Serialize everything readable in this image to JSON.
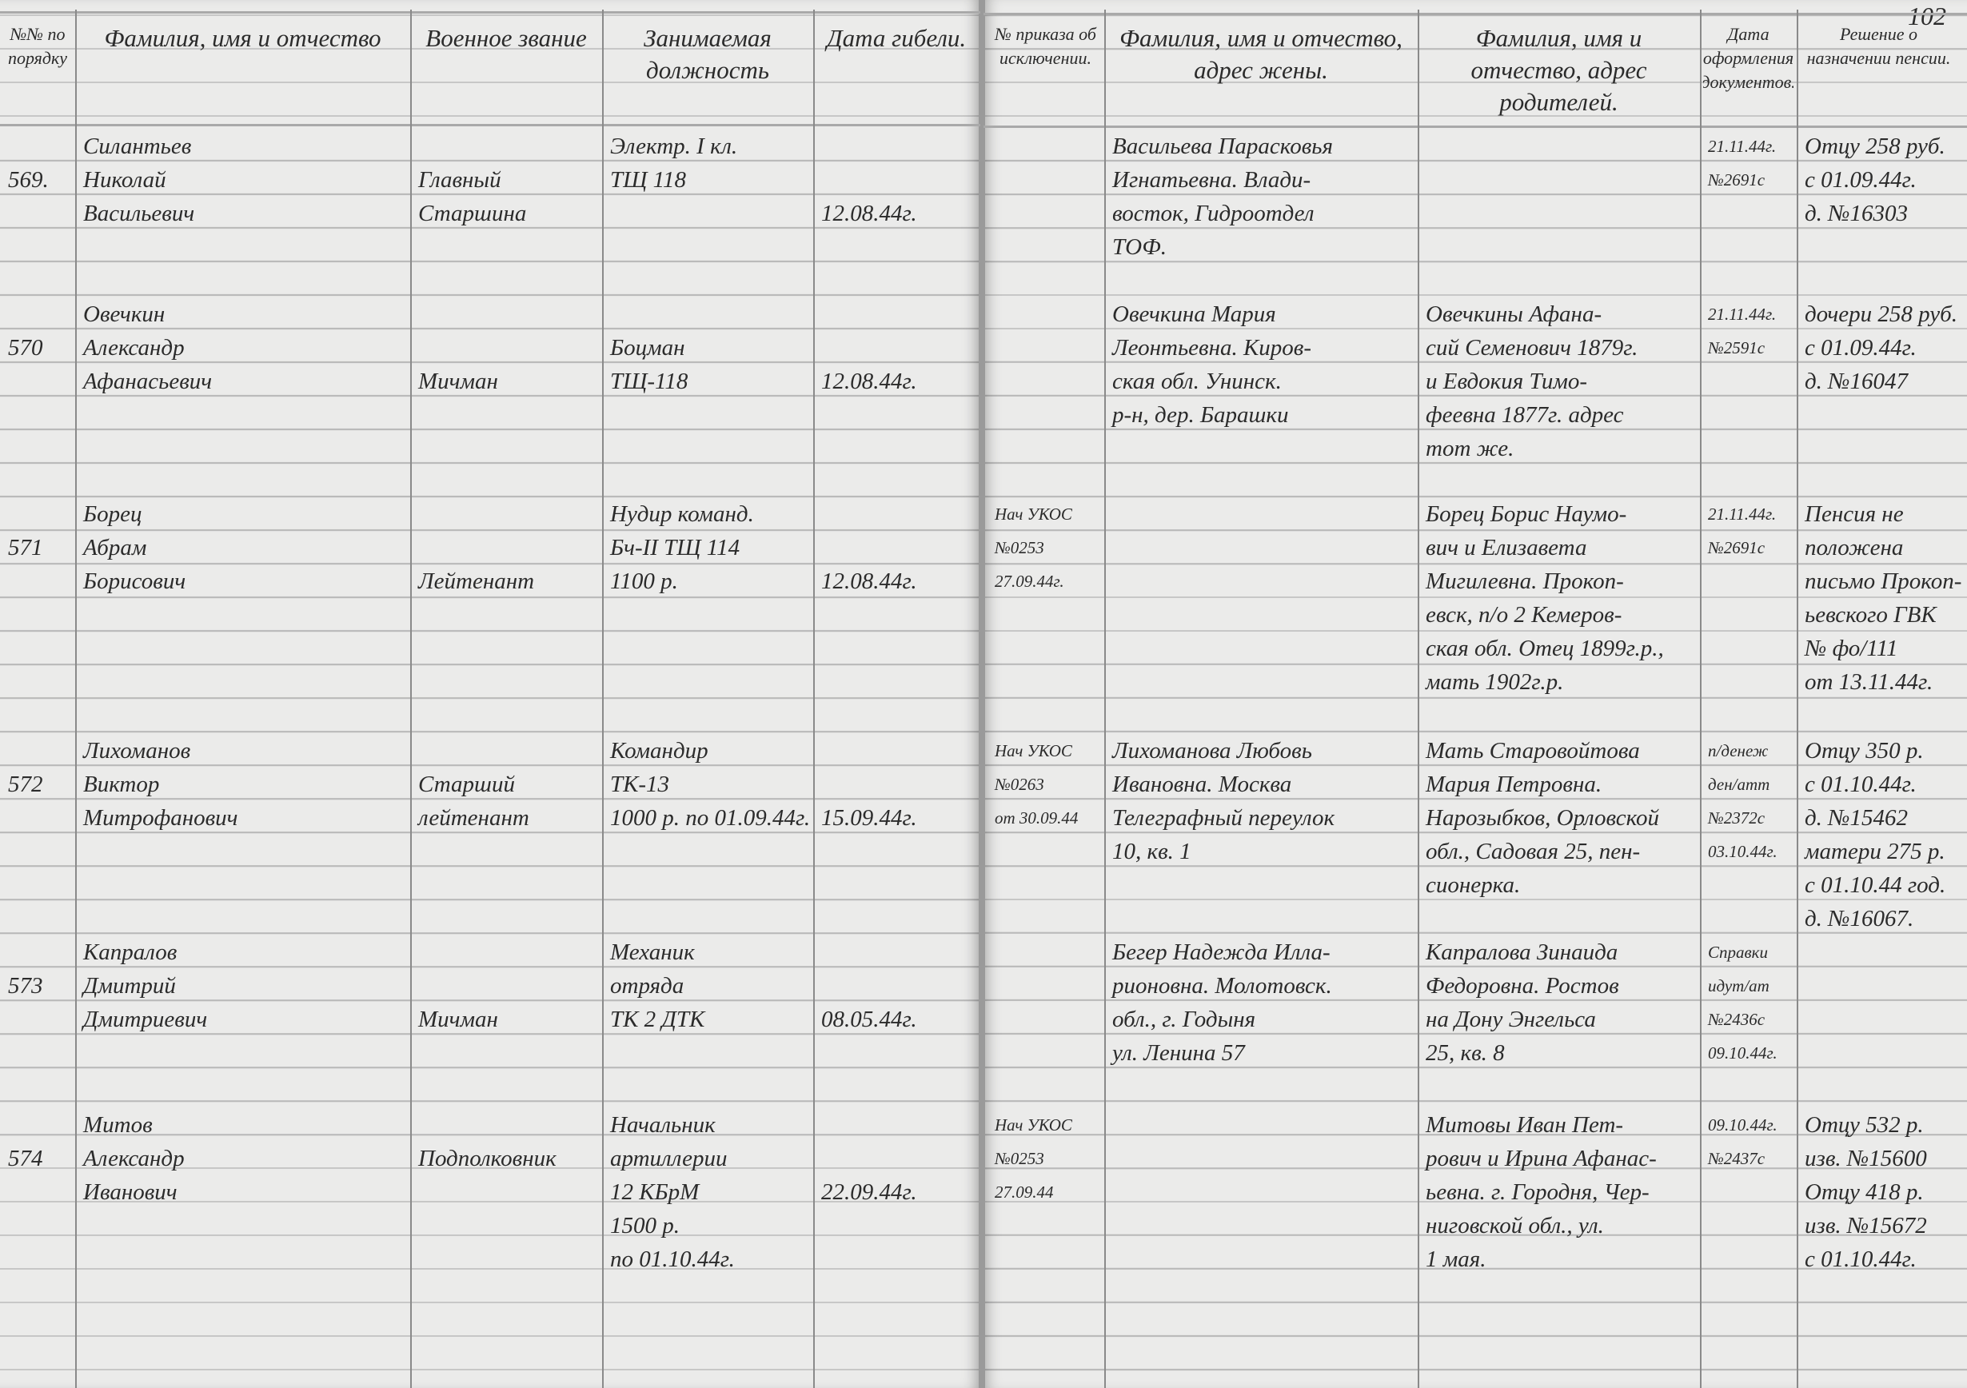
{
  "page_number": "102",
  "headers": {
    "number": "№№ по порядку",
    "name": "Фамилия, имя и отчество",
    "rank": "Военное звание",
    "position": "Занимаемая должность",
    "death_date": "Дата гибели.",
    "order": "№ приказа об исключении.",
    "wife": "Фамилия, имя и отчество, адрес жены.",
    "parents": "Фамилия, имя и отчество, адрес родителей.",
    "docs": "Дата оформления документов.",
    "decision": "Решение о назначении пенсии."
  },
  "records": [
    {
      "number": [
        "",
        "569."
      ],
      "name": [
        "Силантьев",
        "Николай",
        "Васильевич"
      ],
      "rank": [
        "",
        "Главный",
        "Старшина"
      ],
      "position": [
        "Электр. I кл.",
        "ТЩ 118"
      ],
      "death_date": [
        "",
        "",
        "12.08.44г."
      ],
      "order": [],
      "wife": [
        "Васильева Парасковья",
        "Игнатьевна. Влади-",
        "восток, Гидроотдел",
        "ТОФ."
      ],
      "parents": [],
      "docs": [
        "21.11.44г.",
        "№2691с"
      ],
      "decision": [
        "Отцу 258 руб.",
        "с 01.09.44г.",
        "д. №16303"
      ]
    },
    {
      "number": [
        "",
        "570"
      ],
      "name": [
        "Овечкин",
        "Александр",
        "Афанасьевич"
      ],
      "rank": [
        "",
        "",
        "Мичман"
      ],
      "position": [
        "",
        "Боцман",
        "ТЩ-118"
      ],
      "death_date": [
        "",
        "",
        "12.08.44г."
      ],
      "order": [],
      "wife": [
        "Овечкина Мария",
        "Леонтьевна. Киров-",
        "ская обл. Унинск.",
        "р-н, дер. Барашки"
      ],
      "parents": [
        "Овечкины Афана-",
        "сий Семенович 1879г.",
        "и Евдокия Тимо-",
        "феевна 1877г. адрес",
        "тот же."
      ],
      "docs": [
        "21.11.44г.",
        "№2591с"
      ],
      "decision": [
        "дочери 258 руб.",
        "с 01.09.44г.",
        "д. №16047"
      ]
    },
    {
      "number": [
        "",
        "571"
      ],
      "name": [
        "Борец",
        "Абрам",
        "Борисович"
      ],
      "rank": [
        "",
        "",
        "Лейтенант"
      ],
      "position": [
        "Нудир команд.",
        "Бч-II ТЩ 114",
        "1100 р."
      ],
      "death_date": [
        "",
        "",
        "12.08.44г."
      ],
      "order": [
        "Нач УКОС",
        "№0253",
        "27.09.44г."
      ],
      "wife": [],
      "parents": [
        "Борец Борис Наумо-",
        "вич и Елизавета",
        "Мигилевна. Прокоп-",
        "евск, п/о 2 Кемеров-",
        "ская обл. Отец 1899г.р.,",
        "мать 1902г.р."
      ],
      "docs": [
        "21.11.44г.",
        "№2691с"
      ],
      "decision": [
        "Пенсия не",
        "положена",
        "письмо Прокоп-",
        "ьевского ГВК",
        "№ фо/111",
        "от 13.11.44г."
      ]
    },
    {
      "number": [
        "",
        "572"
      ],
      "name": [
        "Лихоманов",
        "Виктор",
        "Митрофанович"
      ],
      "rank": [
        "",
        "Старший",
        "лейтенант"
      ],
      "position": [
        "Командир",
        "ТК-13",
        "1000 р. по 01.09.44г."
      ],
      "death_date": [
        "",
        "",
        "15.09.44г."
      ],
      "order": [
        "Нач УКОС",
        "№0263",
        "от 30.09.44"
      ],
      "wife": [
        "Лихоманова Любовь",
        "Ивановна. Москва",
        "Телеграфный переулок",
        "10, кв. 1"
      ],
      "parents": [
        "Мать Старовойтова",
        "Мария Петровна.",
        "Нарозыбков, Орловской",
        "обл., Садовая 25, пен-",
        "сионерка."
      ],
      "docs": [
        "п/денеж",
        "ден/атт",
        "№2372с",
        "03.10.44г."
      ],
      "decision": [
        "Отцу 350 р.",
        "с 01.10.44г.",
        "д. №15462",
        "матери 275 р.",
        "с 01.10.44 год.",
        "д. №16067."
      ]
    },
    {
      "number": [
        "",
        "573"
      ],
      "name": [
        "Капралов",
        "Дмитрий",
        "Дмитриевич"
      ],
      "rank": [
        "",
        "",
        "Мичман"
      ],
      "position": [
        "Механик",
        "отряда",
        "ТК 2 ДТК"
      ],
      "death_date": [
        "",
        "",
        "08.05.44г."
      ],
      "order": [],
      "wife": [
        "Бегер Надежда Илла-",
        "рионовна. Молотовск.",
        "обл., г. Годыня",
        "ул. Ленина 57"
      ],
      "parents": [
        "Капралова Зинаида",
        "Федоровна. Ростов",
        "на Дону Энгельса",
        "25, кв. 8"
      ],
      "docs": [
        "Справки",
        "идут/ат",
        "№2436с",
        "09.10.44г."
      ],
      "decision": []
    },
    {
      "number": [
        "",
        "574"
      ],
      "name": [
        "Митов",
        "Александр",
        "Иванович"
      ],
      "rank": [
        "",
        "Подполковник"
      ],
      "position": [
        "Начальник",
        "артиллерии",
        "12 КБрМ",
        "1500 р.",
        "по 01.10.44г."
      ],
      "death_date": [
        "",
        "",
        "22.09.44г."
      ],
      "order": [
        "Нач УКОС",
        "№0253",
        "27.09.44"
      ],
      "wife": [],
      "parents": [
        "Митовы Иван Пет-",
        "рович и Ирина Афанас-",
        "ьевна. г. Городня, Чер-",
        "ниговской обл., ул.",
        "1 мая."
      ],
      "docs": [
        "09.10.44г.",
        "№2437с"
      ],
      "decision": [
        "Отцу 532 р.",
        "изв. №15600",
        "Отцу 418 р.",
        "изв. №15672",
        "с 01.10.44г."
      ]
    }
  ]
}
